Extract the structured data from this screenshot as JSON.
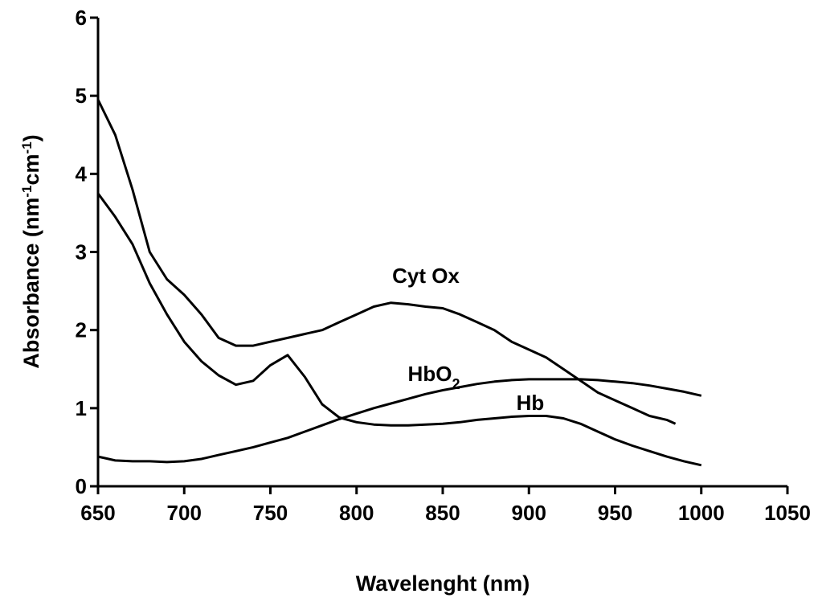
{
  "chart_data": {
    "type": "line",
    "xlabel": "Wavelenght (nm)",
    "ylabel_parts": [
      {
        "text": "Absorbance (nm"
      },
      {
        "text": "-1",
        "sup": true
      },
      {
        "text": "cm"
      },
      {
        "text": "-1",
        "sup": true
      },
      {
        "text": ")"
      }
    ],
    "xlim": [
      650,
      1050
    ],
    "xticks": [
      650,
      700,
      750,
      800,
      850,
      900,
      950,
      1000,
      1050
    ],
    "ylim": [
      0,
      6
    ],
    "yticks": [
      0,
      1,
      2,
      3,
      4,
      5,
      6
    ],
    "annotations": [
      [
        {
          "text": "Cyt Ox"
        }
      ],
      [
        {
          "text": "HbO"
        },
        {
          "text": "2",
          "sub": true
        }
      ],
      [
        {
          "text": "Hb"
        }
      ]
    ],
    "series": [
      {
        "color": "#000000",
        "x": [
          650,
          660,
          670,
          680,
          690,
          700,
          710,
          720,
          730,
          740,
          750,
          760,
          770,
          780,
          790,
          800,
          810,
          820,
          830,
          840,
          850,
          860,
          870,
          880,
          890,
          900,
          910,
          920,
          930,
          940,
          950,
          960,
          970,
          980,
          985
        ],
        "values": [
          4.95,
          4.5,
          3.8,
          3.0,
          2.65,
          2.45,
          2.2,
          1.9,
          1.8,
          1.8,
          1.85,
          1.9,
          1.95,
          2.0,
          2.1,
          2.2,
          2.3,
          2.35,
          2.33,
          2.3,
          2.28,
          2.2,
          2.1,
          2.0,
          1.85,
          1.75,
          1.65,
          1.5,
          1.35,
          1.2,
          1.1,
          1.0,
          0.9,
          0.85,
          0.8
        ]
      },
      {
        "color": "#000000",
        "x": [
          650,
          660,
          670,
          680,
          690,
          700,
          710,
          720,
          730,
          740,
          750,
          760,
          770,
          780,
          790,
          800,
          810,
          820,
          830,
          840,
          850,
          860,
          870,
          880,
          890,
          900,
          910,
          920,
          930,
          940,
          950,
          960,
          970,
          980,
          990,
          1000
        ],
        "values": [
          0.38,
          0.33,
          0.32,
          0.32,
          0.31,
          0.32,
          0.35,
          0.4,
          0.45,
          0.5,
          0.56,
          0.62,
          0.7,
          0.78,
          0.86,
          0.93,
          1.0,
          1.06,
          1.12,
          1.18,
          1.23,
          1.27,
          1.31,
          1.34,
          1.36,
          1.37,
          1.37,
          1.37,
          1.37,
          1.36,
          1.34,
          1.32,
          1.29,
          1.25,
          1.21,
          1.16
        ]
      },
      {
        "color": "#000000",
        "x": [
          650,
          660,
          670,
          680,
          690,
          700,
          710,
          720,
          730,
          740,
          750,
          760,
          770,
          780,
          790,
          800,
          810,
          820,
          830,
          840,
          850,
          860,
          870,
          880,
          890,
          900,
          910,
          920,
          930,
          940,
          950,
          960,
          970,
          980,
          990,
          1000
        ],
        "values": [
          3.75,
          3.45,
          3.1,
          2.6,
          2.2,
          1.85,
          1.6,
          1.42,
          1.3,
          1.35,
          1.55,
          1.68,
          1.4,
          1.05,
          0.88,
          0.82,
          0.79,
          0.78,
          0.78,
          0.79,
          0.8,
          0.82,
          0.85,
          0.87,
          0.89,
          0.9,
          0.9,
          0.87,
          0.8,
          0.7,
          0.6,
          0.52,
          0.45,
          0.38,
          0.32,
          0.27
        ]
      }
    ]
  }
}
